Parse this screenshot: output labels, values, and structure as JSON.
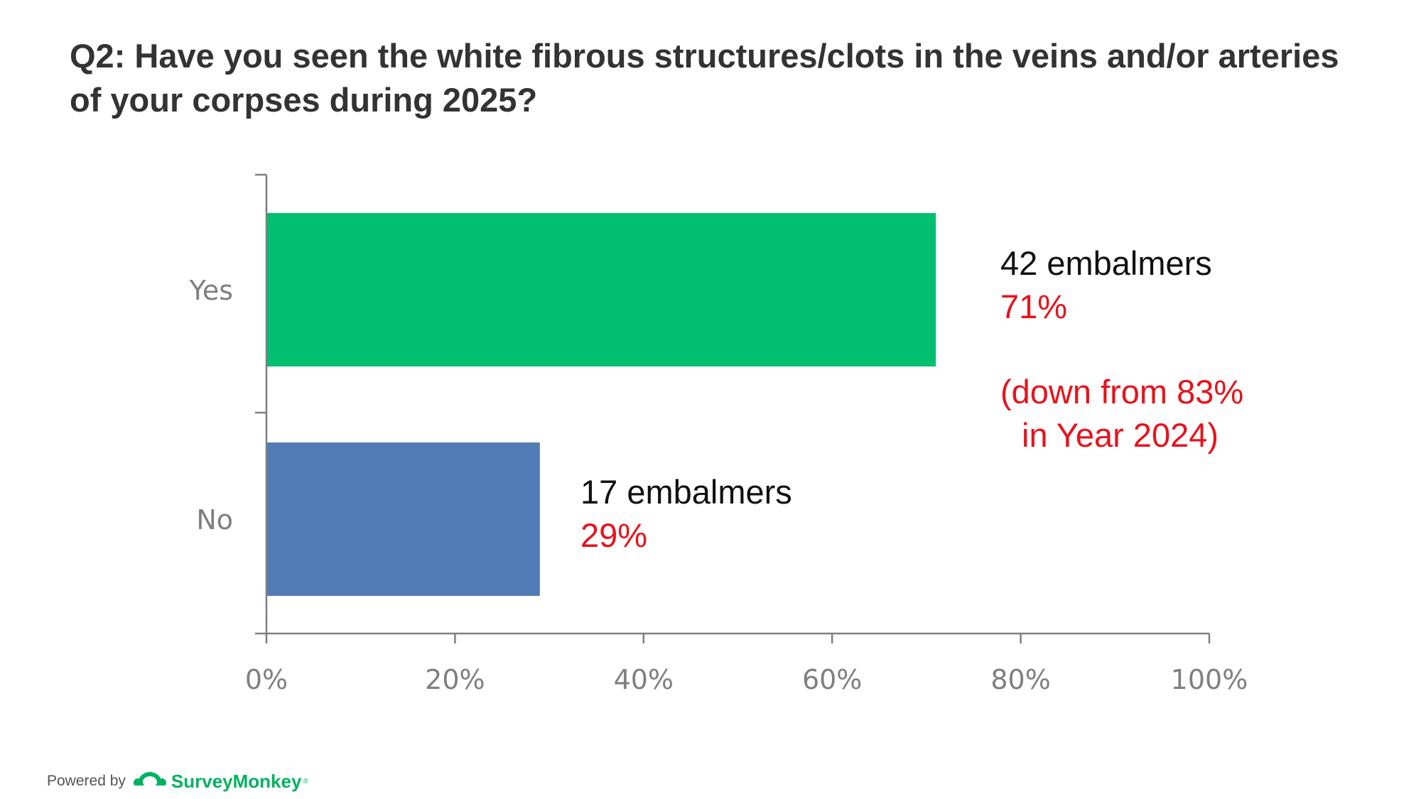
{
  "title": "Q2: Have you seen the white fibrous structures/clots in the veins and/or arteries of your corpses during 2025?",
  "colors": {
    "yes_bar": "#00bf6f",
    "no_bar": "#517bb4",
    "axis": "#7f7f7f",
    "tick_label": "#7f7f7f",
    "annotation_red": "#e8121b",
    "annotation_black": "#111111",
    "brand": "#00b25f"
  },
  "chart_data": {
    "type": "bar",
    "orientation": "horizontal",
    "categories": [
      "Yes",
      "No"
    ],
    "values": [
      71,
      29
    ],
    "xlim": [
      0,
      100
    ],
    "xticks": [
      "0%",
      "20%",
      "40%",
      "60%",
      "80%",
      "100%"
    ],
    "grid": false,
    "annotations": {
      "yes_count": "42 embalmers",
      "yes_pct": "71%",
      "yes_note_line1": "(down from 83%",
      "yes_note_line2": "in Year 2024)",
      "no_count": "17 embalmers",
      "no_pct": "29%"
    }
  },
  "footer": {
    "powered_by": "Powered by",
    "brand": "SurveyMonkey",
    "trademark": "®",
    "logo_icon": "surveymonkey-logo-icon"
  }
}
